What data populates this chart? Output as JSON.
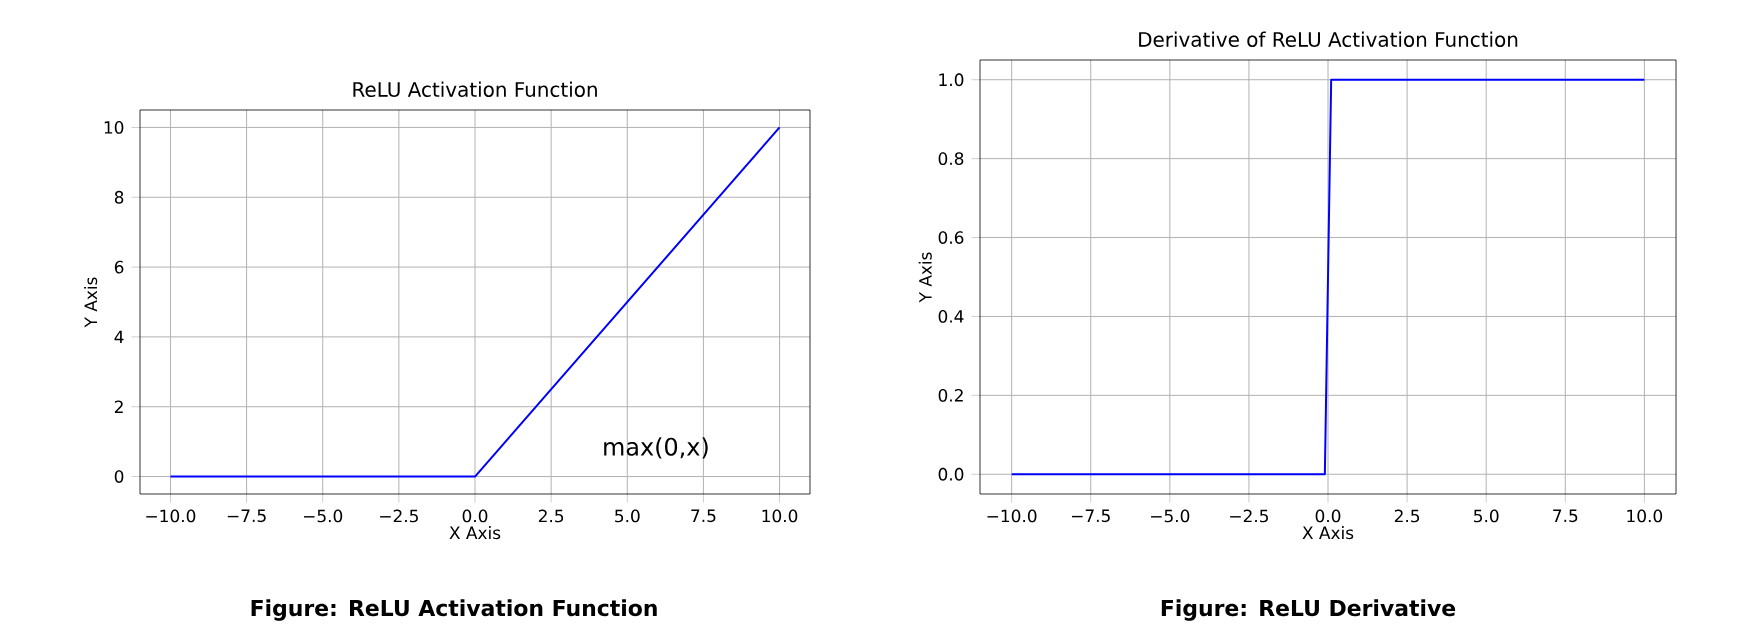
{
  "chart_data": [
    {
      "type": "line",
      "title": "ReLU Activation Function",
      "xlabel": "X Axis",
      "ylabel": "Y Axis",
      "x": [
        -10,
        0,
        10
      ],
      "values": [
        0,
        0,
        10
      ],
      "color": "#0000ff",
      "xlim": [
        -11,
        11
      ],
      "ylim": [
        -0.5,
        10.5
      ],
      "xticks": [
        {
          "value": -10,
          "label": "−10.0"
        },
        {
          "value": -7.5,
          "label": "−7.5"
        },
        {
          "value": -5,
          "label": "−5.0"
        },
        {
          "value": -2.5,
          "label": "−2.5"
        },
        {
          "value": 0,
          "label": "0.0"
        },
        {
          "value": 2.5,
          "label": "2.5"
        },
        {
          "value": 5,
          "label": "5.0"
        },
        {
          "value": 7.5,
          "label": "7.5"
        },
        {
          "value": 10,
          "label": "10.0"
        }
      ],
      "yticks": [
        0,
        2,
        4,
        6,
        8,
        10
      ],
      "grid": true,
      "annotations": [
        "max(0,x)",
        "Figure: ReLU Activation Function"
      ]
    },
    {
      "type": "line",
      "title": "Derivative of ReLU Activation Function",
      "xlabel": "X Axis",
      "ylabel": "Y Axis",
      "x": [
        -10,
        -0.1,
        0.1,
        10
      ],
      "values": [
        0,
        0,
        1,
        1
      ],
      "color": "#0000ff",
      "xlim": [
        -11,
        11
      ],
      "ylim": [
        -0.05,
        1.05
      ],
      "xticks": [
        {
          "value": -10,
          "label": "−10.0"
        },
        {
          "value": -7.5,
          "label": "−7.5"
        },
        {
          "value": -5,
          "label": "−5.0"
        },
        {
          "value": -2.5,
          "label": "−2.5"
        },
        {
          "value": 0,
          "label": "0.0"
        },
        {
          "value": 2.5,
          "label": "2.5"
        },
        {
          "value": 5,
          "label": "5.0"
        },
        {
          "value": 7.5,
          "label": "7.5"
        },
        {
          "value": 10,
          "label": "10.0"
        }
      ],
      "yticks": [
        {
          "value": 0,
          "label": "0.0"
        },
        {
          "value": 0.2,
          "label": "0.2"
        },
        {
          "value": 0.4,
          "label": "0.4"
        },
        {
          "value": 0.6,
          "label": "0.6"
        },
        {
          "value": 0.8,
          "label": "0.8"
        },
        {
          "value": 1,
          "label": "1.0"
        }
      ],
      "grid": true,
      "annotations": [
        "Figure: ReLU Derivative"
      ]
    }
  ]
}
